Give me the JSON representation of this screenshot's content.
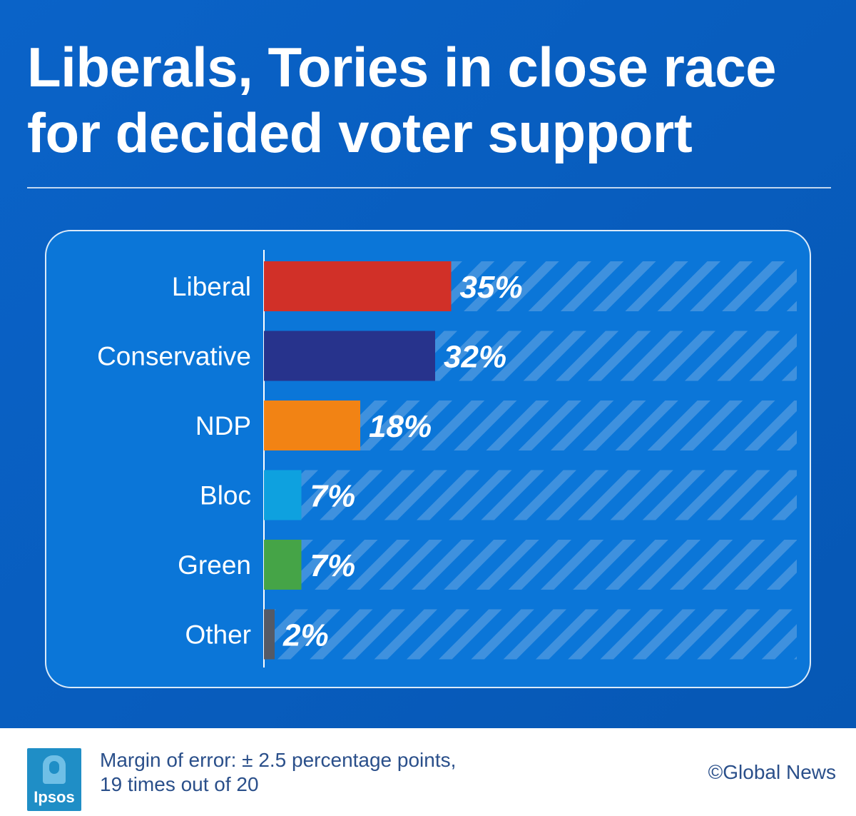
{
  "header": {
    "title": "Liberals, Tories in close race\nfor decided voter support"
  },
  "footer": {
    "logo_text": "Ipsos",
    "margin_line1": "Margin of error: ± 2.5 percentage points,",
    "margin_line2": "19 times out of 20",
    "credit": "©Global News"
  },
  "chart_data": {
    "type": "bar",
    "orientation": "horizontal",
    "categories": [
      "Liberal",
      "Conservative",
      "NDP",
      "Bloc",
      "Green",
      "Other"
    ],
    "values": [
      35,
      32,
      18,
      7,
      7,
      2
    ],
    "value_labels": [
      "35%",
      "32%",
      "18%",
      "7%",
      "7%",
      "2%"
    ],
    "colors": [
      "#d13028",
      "#27338c",
      "#f28314",
      "#0ea1df",
      "#45a447",
      "#555a66"
    ],
    "xlim": [
      0,
      100
    ],
    "grid": false
  },
  "colors": {
    "background": "#0a63c8",
    "panel": "#0b76d8",
    "stripe": "#3f91de"
  }
}
